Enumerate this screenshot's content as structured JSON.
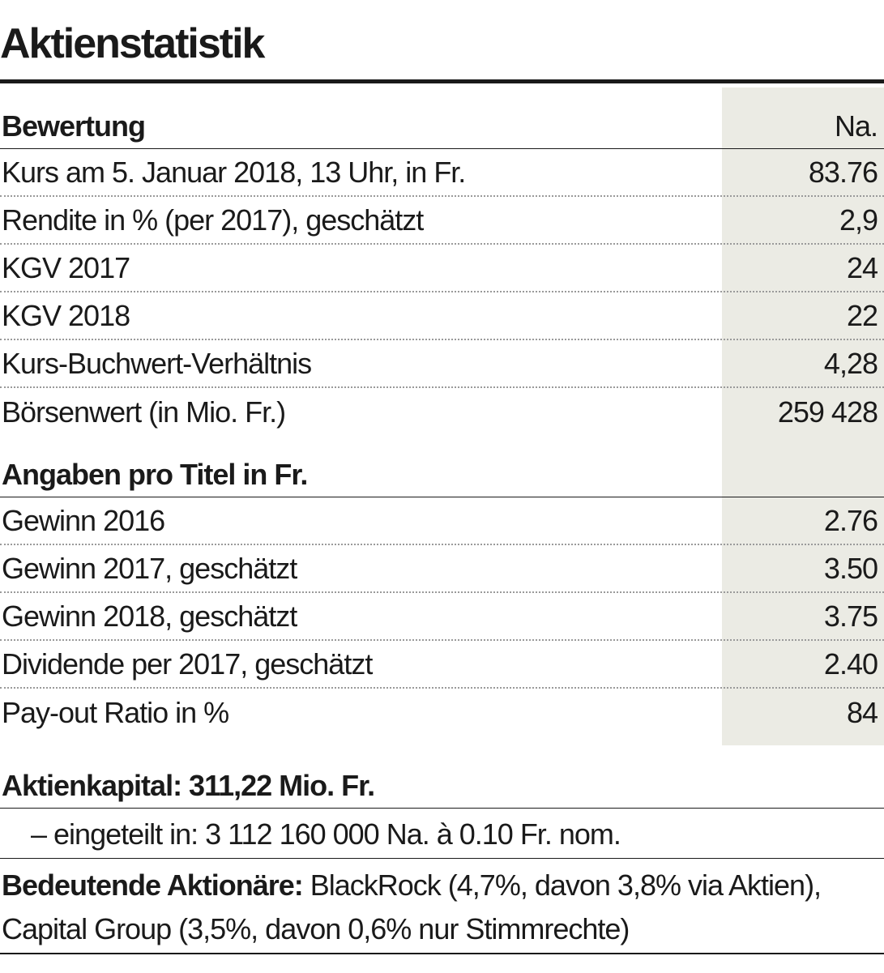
{
  "title": "Aktienstatistik",
  "sections": [
    {
      "heading": "Bewertung",
      "column_header": "Na.",
      "rows": [
        {
          "label": "Kurs am 5. Januar 2018, 13 Uhr, in Fr.",
          "value": "83.76"
        },
        {
          "label": "Rendite in % (per 2017), geschätzt",
          "value": "2,9"
        },
        {
          "label": "KGV 2017",
          "value": "24"
        },
        {
          "label": "KGV 2018",
          "value": "22"
        },
        {
          "label": "Kurs-Buchwert-Verhältnis",
          "value": "4,28"
        },
        {
          "label": "Börsenwert (in Mio. Fr.)",
          "value": "259 428"
        }
      ]
    },
    {
      "heading": "Angaben pro Titel in Fr.",
      "column_header": "",
      "rows": [
        {
          "label": "Gewinn 2016",
          "value": "2.76"
        },
        {
          "label": "Gewinn 2017, geschätzt",
          "value": "3.50"
        },
        {
          "label": "Gewinn 2018, geschätzt",
          "value": "3.75"
        },
        {
          "label": "Dividende per 2017, geschätzt",
          "value": "2.40"
        },
        {
          "label": "Pay-out Ratio in %",
          "value": "84"
        }
      ]
    }
  ],
  "capital": "Aktienkapital: 311,22 Mio. Fr.",
  "division": "– eingeteilt in: 3 112 160 000 Na. à 0.10 Fr. nom.",
  "shareholders": {
    "label": "Bedeutende Aktionäre:",
    "text": " BlackRock (4,7%, davon 3,8% via Aktien), Capital Group (3,5%, davon 0,6% nur Stimmrechte)"
  },
  "colors": {
    "text": "#1a1a1a",
    "value_column_background": "#ebebe4",
    "dotted_rule": "#9a9a9a"
  }
}
